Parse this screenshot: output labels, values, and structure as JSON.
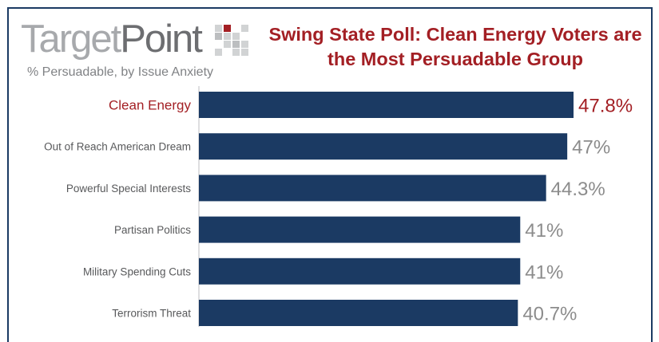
{
  "header": {
    "logo_light": "Target",
    "logo_dark": "Point",
    "subtitle": "% Persuadable, by Issue Anxiety",
    "title": "Swing State Poll: Clean Energy Voters are the Most Persuadable Group"
  },
  "colors": {
    "bar": "#1b3a63",
    "highlight": "#a31f24",
    "category_label": "#58595b",
    "value_label": "#8c8c8c"
  },
  "chart_data": {
    "type": "bar",
    "orientation": "horizontal",
    "categories": [
      "Clean Energy",
      "Out of Reach American Dream",
      "Powerful Special Interests",
      "Partisan Politics",
      "Military Spending Cuts",
      "Terrorism Threat"
    ],
    "values": [
      47.8,
      47,
      44.3,
      41,
      41,
      40.7
    ],
    "value_labels": [
      "47.8%",
      "47%",
      "44.3%",
      "41%",
      "41%",
      "40.7%"
    ],
    "highlighted_category": "Clean Energy",
    "title": "Swing State Poll: Clean Energy Voters are the Most Persuadable Group",
    "subtitle": "% Persuadable, by Issue Anxiety",
    "xlabel": "",
    "ylabel": "",
    "grid": false
  }
}
